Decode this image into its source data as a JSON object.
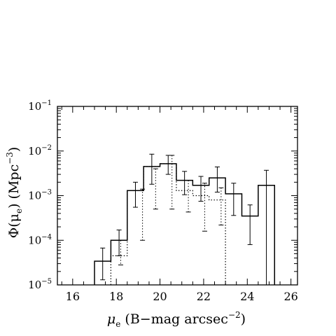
{
  "chart_data": {
    "type": "bar",
    "style": "step-histogram",
    "title": "",
    "xlabel": {
      "symbol": "μ",
      "sub": "e",
      "text": " (B−mag arcsec",
      "sup": "−2",
      "close": ")"
    },
    "ylabel": {
      "text": "Φ(μ",
      "sub": "e",
      "mid": ")   (Mpc",
      "sup": "−3",
      "close": ")"
    },
    "xlim": [
      15.3,
      26.3
    ],
    "ylim": [
      1e-05,
      0.1
    ],
    "y_scale": "log",
    "grid": false,
    "legend": "none",
    "x_ticks": [
      "16",
      "18",
      "20",
      "22",
      "24",
      "26"
    ],
    "y_ticks": [
      {
        "base": "10",
        "exp": "−5"
      },
      {
        "base": "10",
        "exp": "−4"
      },
      {
        "base": "10",
        "exp": "−3"
      },
      {
        "base": "10",
        "exp": "−2"
      },
      {
        "base": "10",
        "exp": "−1"
      }
    ],
    "bin_edges": [
      17.0,
      17.75,
      18.5,
      19.25,
      20.0,
      20.75,
      21.5,
      22.25,
      23.0,
      23.75,
      24.5,
      25.25
    ],
    "series": [
      {
        "line": "solid",
        "values": [
          3.4e-05,
          0.0001,
          0.0013,
          0.0045,
          0.0052,
          0.0022,
          0.0017,
          0.0025,
          0.0011,
          0.00035,
          0.0017
        ],
        "error_x": [
          17.375,
          18.125,
          18.875,
          19.625,
          20.375,
          21.125,
          21.875,
          22.625,
          23.375,
          24.125,
          24.875
        ],
        "error_low": [
          1.3e-05,
          4.5e-05,
          0.00055,
          0.0018,
          0.003,
          0.00105,
          0.00075,
          0.0012,
          0.00036,
          8e-05,
          null
        ],
        "error_high": [
          6.7e-05,
          0.00017,
          0.002,
          0.0085,
          0.008,
          0.0035,
          0.0027,
          0.0044,
          0.0019,
          0.00062,
          0.0037
        ]
      },
      {
        "line": "dotted",
        "values": [
          null,
          4.5e-05,
          0.0013,
          0.0045,
          0.0052,
          0.0013,
          0.001,
          0.0008
        ],
        "error_x": [
          18.2,
          19.2,
          19.8,
          20.55,
          21.3,
          22.05,
          22.8
        ],
        "error_low": [
          2.8e-05,
          0.0001,
          0.0005,
          0.0005,
          0.00043,
          0.00016,
          0.00022
        ],
        "error_high": [
          0.0001,
          0.0014,
          0.004,
          0.008,
          0.0022,
          0.0019,
          0.0015
        ]
      }
    ]
  }
}
